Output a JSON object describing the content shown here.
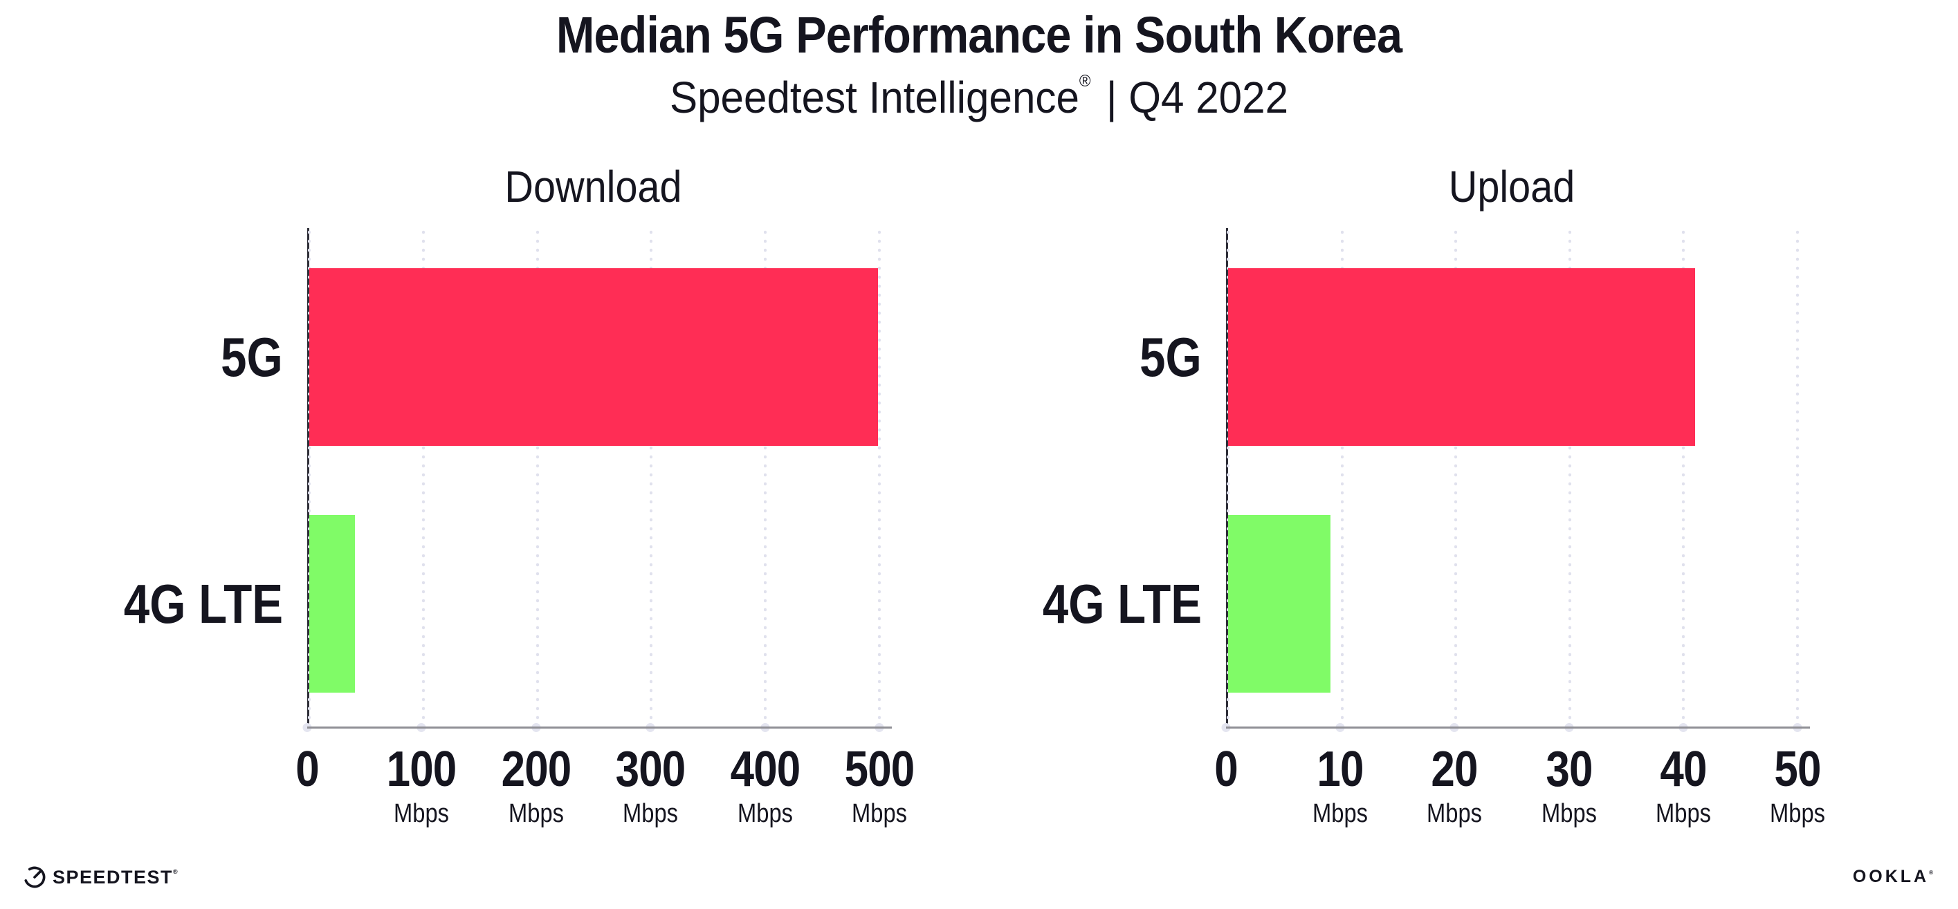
{
  "header": {
    "title": "Median 5G Performance in South Korea",
    "subtitle_brand": "Speedtest Intelligence",
    "subtitle_reg": "®",
    "subtitle_period": "| Q4 2022"
  },
  "chart_data": [
    {
      "type": "bar",
      "orientation": "horizontal",
      "title": "Download",
      "categories": [
        "5G",
        "4G LTE"
      ],
      "values": [
        499,
        40
      ],
      "unit": "Mbps",
      "xlim": [
        0,
        500
      ],
      "xticks": [
        0,
        100,
        200,
        300,
        400,
        500
      ],
      "colors": [
        "#ff2d55",
        "#80fb67"
      ],
      "grid": "dotted-vertical",
      "legend": "none"
    },
    {
      "type": "bar",
      "orientation": "horizontal",
      "title": "Upload",
      "categories": [
        "5G",
        "4G LTE"
      ],
      "values": [
        41,
        9
      ],
      "unit": "Mbps",
      "xlim": [
        0,
        50
      ],
      "xticks": [
        0,
        10,
        20,
        30,
        40,
        50
      ],
      "colors": [
        "#ff2d55",
        "#80fb67"
      ],
      "grid": "dotted-vertical",
      "legend": "none"
    }
  ],
  "style_colors": {
    "bar_5g": "#ff2d55",
    "bar_4g_lte": "#80fb67",
    "grid_dot": "#e0e1ed",
    "y_axis": "#2e2e38",
    "x_axis": "#8f8f95",
    "text": "#15151f",
    "background": "#ffffff"
  },
  "footer": {
    "speedtest_logo_text": "SPEEDTEST",
    "speedtest_reg": "®",
    "ookla_logo_text": "OOKLA",
    "ookla_reg": "®"
  }
}
